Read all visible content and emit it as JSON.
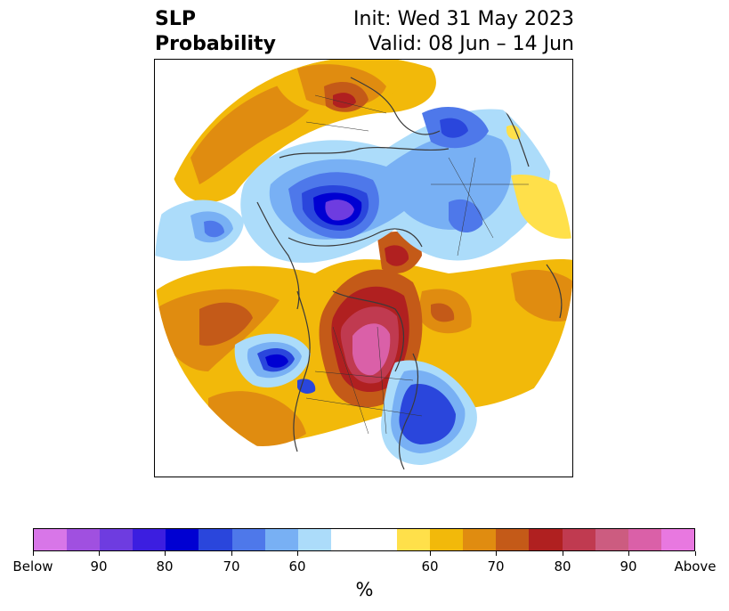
{
  "title": {
    "left_line1": "SLP",
    "left_line2": "Probability",
    "right_line1": "Init: Wed 31 May 2023",
    "right_line2": "Valid: 08 Jun – 14 Jun"
  },
  "colorbar": {
    "colors": [
      "#d876e8",
      "#a050e0",
      "#6e3ce0",
      "#3c1ee0",
      "#0000d2",
      "#2a46dc",
      "#4e78ea",
      "#78b0f4",
      "#acdcfa",
      "#ffffff",
      "#ffffff",
      "#ffe04a",
      "#f2b90a",
      "#e08c10",
      "#c45a18",
      "#b02020",
      "#c03a50",
      "#cc5c80",
      "#da60a8",
      "#e878e0"
    ],
    "tick_labels": [
      "Below",
      "90",
      "80",
      "70",
      "60",
      "60",
      "70",
      "80",
      "90",
      "Above"
    ],
    "unit_label": "%"
  },
  "legend_colors": {
    "below_strong": "#3c1ee0",
    "below_mid": "#4e78ea",
    "below_weak": "#acdcfa",
    "above_weak": "#ffe04a",
    "above_mid": "#e08c10",
    "above_strong": "#b02020",
    "above_extreme": "#da60a8"
  }
}
